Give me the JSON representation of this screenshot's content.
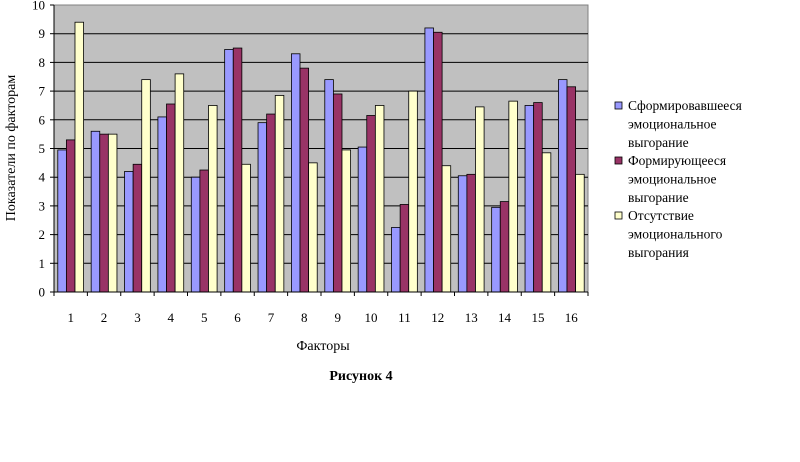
{
  "chart_data": {
    "type": "bar",
    "xlabel": "Факторы",
    "ylabel": "Показатели по факторам",
    "caption": "Рисунок 4",
    "ylim": [
      0,
      10
    ],
    "yticks": [
      0,
      1,
      2,
      3,
      4,
      5,
      6,
      7,
      8,
      9,
      10
    ],
    "grid": true,
    "legend_position": "right",
    "categories": [
      "1",
      "2",
      "3",
      "4",
      "5",
      "6",
      "7",
      "8",
      "9",
      "10",
      "11",
      "12",
      "13",
      "14",
      "15",
      "16"
    ],
    "series": [
      {
        "name": "Сформировавшееся эмоциональное выгорание",
        "legend_lines": [
          "Сформировавшееся",
          "эмоциональное",
          "выгорание"
        ],
        "color": "#9999ff",
        "values": [
          4.95,
          5.6,
          4.2,
          6.1,
          4.0,
          8.45,
          5.9,
          8.3,
          7.4,
          5.05,
          2.25,
          9.2,
          4.05,
          2.95,
          6.5,
          7.4
        ]
      },
      {
        "name": "Формирующееся эмоциональное выгорание",
        "legend_lines": [
          "Формирующееся",
          "эмоциональное",
          "выгорание"
        ],
        "color": "#993366",
        "values": [
          5.3,
          5.5,
          4.45,
          6.55,
          4.25,
          8.5,
          6.2,
          7.8,
          6.9,
          6.15,
          3.05,
          9.05,
          4.1,
          3.15,
          6.6,
          7.15
        ]
      },
      {
        "name": "Отсутствие эмоционального выгорания",
        "legend_lines": [
          "Отсутствие",
          "эмоционального",
          "выгорания"
        ],
        "color": "#ffffcc",
        "values": [
          9.4,
          5.5,
          7.4,
          7.6,
          6.5,
          4.45,
          6.85,
          4.5,
          4.95,
          6.5,
          7.0,
          4.4,
          6.45,
          6.65,
          4.85,
          4.1
        ]
      }
    ]
  }
}
